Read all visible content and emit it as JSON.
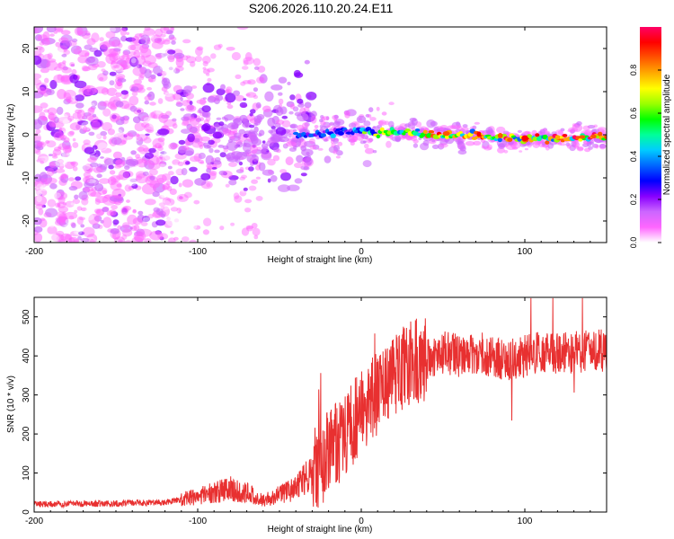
{
  "title": "S206.2026.110.20.24.E11",
  "chart_data": [
    {
      "type": "heatmap",
      "xlabel": "Height of straight line (km)",
      "ylabel": "Frequency (Hz)",
      "xlim": [
        -200,
        150
      ],
      "ylim": [
        -25,
        25
      ],
      "xticks": [
        -200,
        -100,
        0,
        100
      ],
      "xtick_labels": [
        "-200",
        "-100",
        "0",
        "100"
      ],
      "yticks": [
        -20,
        -10,
        0,
        10,
        20
      ],
      "ytick_labels": [
        "-20",
        "-10",
        "0",
        "10",
        "20"
      ],
      "colorbar": {
        "label": "Normalized spectral amplitude",
        "range": [
          0,
          1
        ],
        "ticks": [
          0,
          0.2,
          0.4,
          0.6,
          0.8
        ],
        "tick_labels": [
          "0.0",
          "0.2",
          "0.4",
          "0.6",
          "0.8"
        ],
        "colors": [
          "#ffffff",
          "#ff66ff",
          "#cc66ff",
          "#8800ff",
          "#0000ff",
          "#0066ff",
          "#00ccff",
          "#00ff99",
          "#00ff00",
          "#99ff00",
          "#ffff00",
          "#ffaa00",
          "#ff5500",
          "#ff0000",
          "#ff0066"
        ]
      },
      "description_points": {
        "noise_region_x": [
          -200,
          -110
        ],
        "transition_region_x": [
          -110,
          -30
        ],
        "signal_line_x": [
          -30,
          150
        ],
        "signal_frequency_hz": [
          [
            -30,
            0
          ],
          [
            0,
            1
          ],
          [
            50,
            0
          ],
          [
            100,
            -1
          ],
          [
            150,
            -0.5
          ]
        ]
      }
    },
    {
      "type": "line",
      "xlabel": "Height of straight line (km)",
      "ylabel": "SNR (10 * v/v)",
      "xlim": [
        -200,
        150
      ],
      "ylim": [
        0,
        550
      ],
      "xticks": [
        -200,
        -100,
        0,
        100
      ],
      "xtick_labels": [
        "-200",
        "-100",
        "0",
        "100"
      ],
      "yticks": [
        0,
        100,
        200,
        300,
        400,
        500
      ],
      "ytick_labels": [
        "0",
        "100",
        "200",
        "300",
        "400",
        "500"
      ],
      "color": "#e83030",
      "trend": {
        "x": [
          -200,
          -150,
          -120,
          -100,
          -80,
          -70,
          -60,
          -40,
          -30,
          -20,
          -10,
          0,
          10,
          20,
          30,
          40,
          50,
          60,
          70,
          80,
          90,
          100,
          110,
          120,
          130,
          150
        ],
        "y": [
          20,
          22,
          25,
          40,
          60,
          50,
          30,
          60,
          100,
          150,
          200,
          260,
          300,
          350,
          380,
          395,
          410,
          400,
          410,
          400,
          390,
          400,
          410,
          405,
          410,
          415
        ]
      }
    }
  ]
}
